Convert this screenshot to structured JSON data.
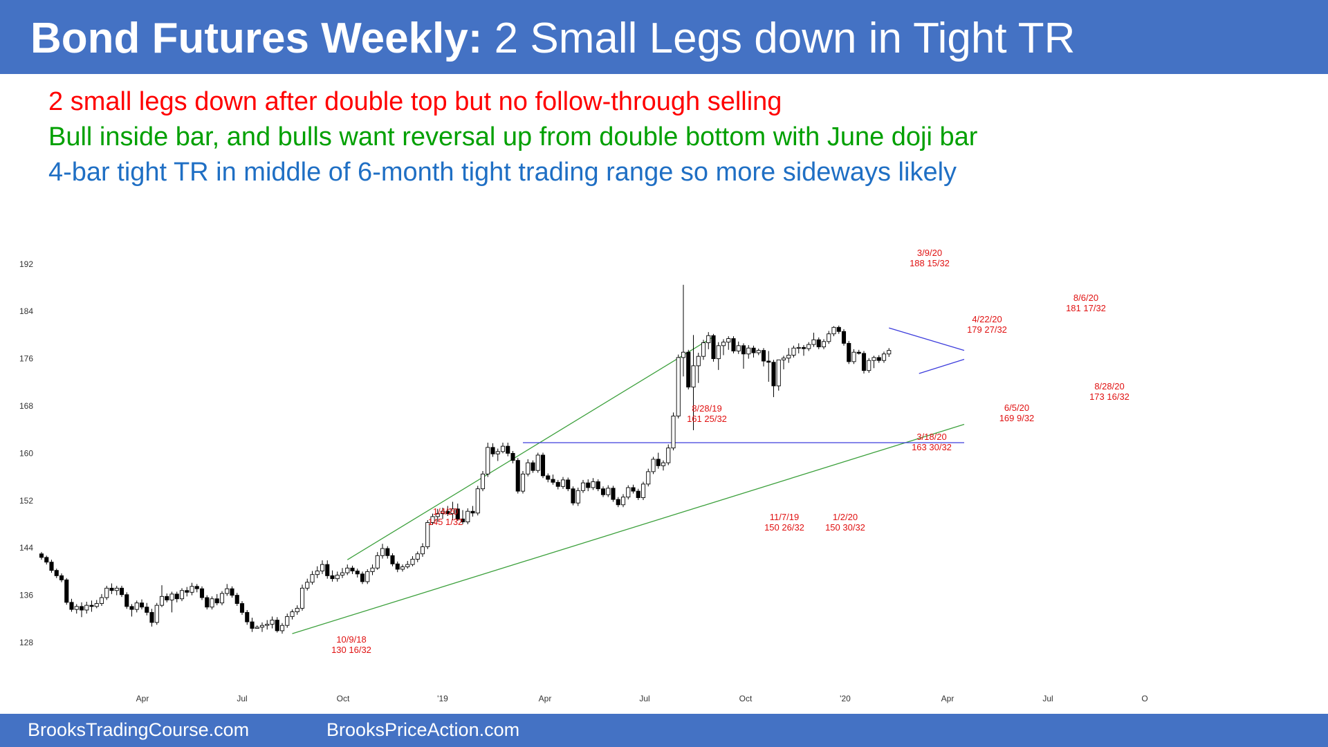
{
  "header": {
    "title_bold": "Bond Futures Weekly:",
    "title_rest": "2 Small Legs down in Tight TR"
  },
  "notes": [
    {
      "text": "2 small legs down after double top but no follow-through selling",
      "color": "#ff0000"
    },
    {
      "text": "Bull inside bar, and bulls want reversal up from double bottom with June doji bar",
      "color": "#00a000"
    },
    {
      "text": "4-bar tight TR in middle of 6-month tight trading range so more sideways likely",
      "color": "#1f6fc4"
    }
  ],
  "footer": {
    "left": "BrooksTradingCourse.com",
    "right": "BrooksPriceAction.com"
  },
  "colors": {
    "brand_blue": "#4472c4",
    "green_line": "#3ca03c",
    "blue_line": "#3c3cdc",
    "annotation": "#e01010"
  },
  "chart_data": {
    "type": "candlestick",
    "ylim": [
      124,
      194
    ],
    "y_ticks": [
      "192",
      "184",
      "176",
      "168",
      "160",
      "152",
      "144",
      "136",
      "128"
    ],
    "x_tick_labels": [
      "Apr",
      "Jul",
      "Oct",
      "'19",
      "Apr",
      "Jul",
      "Oct",
      "'20",
      "Apr",
      "Jul",
      "O"
    ],
    "bars": [
      [
        143.0,
        143.3,
        142.0,
        142.4
      ],
      [
        142.4,
        142.7,
        141.2,
        141.6
      ],
      [
        141.6,
        142.0,
        139.8,
        140.2
      ],
      [
        140.2,
        140.5,
        138.9,
        139.3
      ],
      [
        139.3,
        139.7,
        138.2,
        138.6
      ],
      [
        138.6,
        138.9,
        134.4,
        134.8
      ],
      [
        134.8,
        135.4,
        133.2,
        133.6
      ],
      [
        133.6,
        134.5,
        132.9,
        134.1
      ],
      [
        134.1,
        134.8,
        132.3,
        133.5
      ],
      [
        133.5,
        134.9,
        132.9,
        134.3
      ],
      [
        134.3,
        135.1,
        133.2,
        134.1
      ],
      [
        134.1,
        135.2,
        133.8,
        134.6
      ],
      [
        134.6,
        136.2,
        134.2,
        135.6
      ],
      [
        135.6,
        137.6,
        135.2,
        137.2
      ],
      [
        137.2,
        138.0,
        136.2,
        136.8
      ],
      [
        136.8,
        137.6,
        136.0,
        137.2
      ],
      [
        137.2,
        137.6,
        135.7,
        136.1
      ],
      [
        136.1,
        136.5,
        133.7,
        134.1
      ],
      [
        134.1,
        134.5,
        132.4,
        133.6
      ],
      [
        133.6,
        135.1,
        133.1,
        134.7
      ],
      [
        134.7,
        135.3,
        133.6,
        134.0
      ],
      [
        134.0,
        134.7,
        132.6,
        133.1
      ],
      [
        133.1,
        133.7,
        130.7,
        131.4
      ],
      [
        131.4,
        134.7,
        131.0,
        134.3
      ],
      [
        134.3,
        137.7,
        134.0,
        135.8
      ],
      [
        135.8,
        136.3,
        134.8,
        135.2
      ],
      [
        135.2,
        136.6,
        133.1,
        136.2
      ],
      [
        136.2,
        136.6,
        134.8,
        135.4
      ],
      [
        135.4,
        137.2,
        135.0,
        136.8
      ],
      [
        136.8,
        137.4,
        135.8,
        136.5
      ],
      [
        136.5,
        138.1,
        136.0,
        137.5
      ],
      [
        137.5,
        137.9,
        136.5,
        137.1
      ],
      [
        137.1,
        137.5,
        135.2,
        135.6
      ],
      [
        135.6,
        136.0,
        133.6,
        134.0
      ],
      [
        134.0,
        135.8,
        133.6,
        135.4
      ],
      [
        135.4,
        136.2,
        134.3,
        134.7
      ],
      [
        134.7,
        136.7,
        134.3,
        136.3
      ],
      [
        136.3,
        137.9,
        135.9,
        137.1
      ],
      [
        137.1,
        137.5,
        135.6,
        136.0
      ],
      [
        136.0,
        136.4,
        134.2,
        134.6
      ],
      [
        134.6,
        135.0,
        132.7,
        133.1
      ],
      [
        133.1,
        133.5,
        131.0,
        131.5
      ],
      [
        131.5,
        132.2,
        129.8,
        130.4
      ],
      [
        130.4,
        130.9,
        130.5,
        130.6
      ],
      [
        130.6,
        131.4,
        129.8,
        130.9
      ],
      [
        130.9,
        131.8,
        130.2,
        131.1
      ],
      [
        131.1,
        132.4,
        130.4,
        131.8
      ],
      [
        131.8,
        132.3,
        129.7,
        130.0
      ],
      [
        130.0,
        131.3,
        129.5,
        130.9
      ],
      [
        130.9,
        132.9,
        130.5,
        132.4
      ],
      [
        132.4,
        133.6,
        131.9,
        133.2
      ],
      [
        133.2,
        134.3,
        132.7,
        133.8
      ],
      [
        133.8,
        137.8,
        133.4,
        137.2
      ],
      [
        137.2,
        138.8,
        136.8,
        138.2
      ],
      [
        138.2,
        140.1,
        137.8,
        139.5
      ],
      [
        139.5,
        140.9,
        138.9,
        140.1
      ],
      [
        140.1,
        141.9,
        139.6,
        141.2
      ],
      [
        141.2,
        141.9,
        138.8,
        139.3
      ],
      [
        139.3,
        140.2,
        138.3,
        138.8
      ],
      [
        138.8,
        140.0,
        138.3,
        139.4
      ],
      [
        139.4,
        140.6,
        138.9,
        139.8
      ],
      [
        139.8,
        141.2,
        139.4,
        140.6
      ],
      [
        140.6,
        141.0,
        139.6,
        140.1
      ],
      [
        140.1,
        140.5,
        139.0,
        139.6
      ],
      [
        139.6,
        140.0,
        137.9,
        138.3
      ],
      [
        138.3,
        140.4,
        137.9,
        140.0
      ],
      [
        140.0,
        141.2,
        139.4,
        140.6
      ],
      [
        140.6,
        143.3,
        140.3,
        142.7
      ],
      [
        142.7,
        144.7,
        142.2,
        143.9
      ],
      [
        143.9,
        144.3,
        142.2,
        142.7
      ],
      [
        142.7,
        143.1,
        140.9,
        141.3
      ],
      [
        141.3,
        141.7,
        139.9,
        140.4
      ],
      [
        140.4,
        141.2,
        140.0,
        140.8
      ],
      [
        140.8,
        141.8,
        140.5,
        141.2
      ],
      [
        141.2,
        142.6,
        140.9,
        142.1
      ],
      [
        142.1,
        143.4,
        141.6,
        143.0
      ],
      [
        143.0,
        144.8,
        142.5,
        144.2
      ],
      [
        144.2,
        148.7,
        143.8,
        148.3
      ],
      [
        148.3,
        149.8,
        147.9,
        149.3
      ],
      [
        149.3,
        150.6,
        148.4,
        149.8
      ],
      [
        149.8,
        150.8,
        148.9,
        150.2
      ],
      [
        150.2,
        151.1,
        149.4,
        149.8
      ],
      [
        149.8,
        151.8,
        148.7,
        150.6
      ],
      [
        150.6,
        151.5,
        148.6,
        148.9
      ],
      [
        148.9,
        150.4,
        148.0,
        148.4
      ],
      [
        148.4,
        150.7,
        148.0,
        150.2
      ],
      [
        150.2,
        151.1,
        149.3,
        149.9
      ],
      [
        149.9,
        154.5,
        149.5,
        154.0
      ],
      [
        154.0,
        157.0,
        153.6,
        156.5
      ],
      [
        156.5,
        161.8,
        156.0,
        161.0
      ],
      [
        161.0,
        161.7,
        159.4,
        159.9
      ],
      [
        159.9,
        160.8,
        158.7,
        160.3
      ],
      [
        160.3,
        161.8,
        160.0,
        161.2
      ],
      [
        161.2,
        161.8,
        159.5,
        160.0
      ],
      [
        160.0,
        160.4,
        158.3,
        158.8
      ],
      [
        158.8,
        159.2,
        153.2,
        153.6
      ],
      [
        153.6,
        157.0,
        153.2,
        156.5
      ],
      [
        156.5,
        159.0,
        156.1,
        158.4
      ],
      [
        158.4,
        158.8,
        156.7,
        157.1
      ],
      [
        157.1,
        160.1,
        156.7,
        159.7
      ],
      [
        159.7,
        160.1,
        155.8,
        156.2
      ],
      [
        156.2,
        156.6,
        155.1,
        155.6
      ],
      [
        155.6,
        156.4,
        154.7,
        155.1
      ],
      [
        155.1,
        155.5,
        153.9,
        154.4
      ],
      [
        154.4,
        156.0,
        154.0,
        155.5
      ],
      [
        155.5,
        155.9,
        153.6,
        154.0
      ],
      [
        154.0,
        154.4,
        151.2,
        151.6
      ],
      [
        151.6,
        154.2,
        151.1,
        153.7
      ],
      [
        153.7,
        155.5,
        153.3,
        155.0
      ],
      [
        155.0,
        155.6,
        153.6,
        154.2
      ],
      [
        154.2,
        155.8,
        153.8,
        155.2
      ],
      [
        155.2,
        155.6,
        153.6,
        154.0
      ],
      [
        154.0,
        154.4,
        152.6,
        153.0
      ],
      [
        153.0,
        154.6,
        152.6,
        154.1
      ],
      [
        154.1,
        154.5,
        151.8,
        152.2
      ],
      [
        152.2,
        152.6,
        150.9,
        151.3
      ],
      [
        151.3,
        153.1,
        150.9,
        152.6
      ],
      [
        152.6,
        154.6,
        152.2,
        154.2
      ],
      [
        154.2,
        154.7,
        153.2,
        153.6
      ],
      [
        153.6,
        154.0,
        152.1,
        152.5
      ],
      [
        152.5,
        155.2,
        152.1,
        154.8
      ],
      [
        154.8,
        157.4,
        154.4,
        156.9
      ],
      [
        156.9,
        159.4,
        156.5,
        159.0
      ],
      [
        159.0,
        160.1,
        157.4,
        157.9
      ],
      [
        157.9,
        158.8,
        157.1,
        158.4
      ],
      [
        158.4,
        161.5,
        158.0,
        160.9
      ],
      [
        160.9,
        166.9,
        160.5,
        166.3
      ],
      [
        166.3,
        176.7,
        165.9,
        176.2
      ],
      [
        176.2,
        188.5,
        173.0,
        177.1
      ],
      [
        177.1,
        177.5,
        170.8,
        171.2
      ],
      [
        171.2,
        180.0,
        163.9,
        174.8
      ],
      [
        174.8,
        177.0,
        171.9,
        176.4
      ],
      [
        176.4,
        179.2,
        175.8,
        178.7
      ],
      [
        178.7,
        180.5,
        177.6,
        179.9
      ],
      [
        179.9,
        180.2,
        175.5,
        176.0
      ],
      [
        176.0,
        178.8,
        174.1,
        178.2
      ],
      [
        178.2,
        179.3,
        176.6,
        178.8
      ],
      [
        178.8,
        179.8,
        177.5,
        179.4
      ],
      [
        179.4,
        179.8,
        176.9,
        177.3
      ],
      [
        177.3,
        178.9,
        176.8,
        178.2
      ],
      [
        178.2,
        178.6,
        174.3,
        176.8
      ],
      [
        176.8,
        178.3,
        176.0,
        177.8
      ],
      [
        177.8,
        178.2,
        176.2,
        177.0
      ],
      [
        177.0,
        177.7,
        176.6,
        177.4
      ],
      [
        177.4,
        177.8,
        174.7,
        175.6
      ],
      [
        175.6,
        177.3,
        172.1,
        175.4
      ],
      [
        175.4,
        175.8,
        169.5,
        171.4
      ],
      [
        171.4,
        175.4,
        170.6,
        175.8
      ],
      [
        175.8,
        176.5,
        174.2,
        176.1
      ],
      [
        176.1,
        177.8,
        175.3,
        176.6
      ],
      [
        176.6,
        178.2,
        176.2,
        177.8
      ],
      [
        177.8,
        178.6,
        176.9,
        177.9
      ],
      [
        177.9,
        178.3,
        176.5,
        177.7
      ],
      [
        177.7,
        178.8,
        177.3,
        178.4
      ],
      [
        178.4,
        180.4,
        178.0,
        179.2
      ],
      [
        179.2,
        179.6,
        177.6,
        178.0
      ],
      [
        178.0,
        179.3,
        177.6,
        178.9
      ],
      [
        178.9,
        180.7,
        178.5,
        180.2
      ],
      [
        180.2,
        181.5,
        179.8,
        181.3
      ],
      [
        181.3,
        181.6,
        180.2,
        180.6
      ],
      [
        180.6,
        181.0,
        178.2,
        178.6
      ],
      [
        178.6,
        179.0,
        175.1,
        175.5
      ],
      [
        175.5,
        177.6,
        175.1,
        177.1
      ],
      [
        177.1,
        177.5,
        176.7,
        176.9
      ],
      [
        176.9,
        177.3,
        173.5,
        174.0
      ],
      [
        174.0,
        176.1,
        173.6,
        175.7
      ],
      [
        175.7,
        176.5,
        174.4,
        176.2
      ],
      [
        176.2,
        176.6,
        175.3,
        175.7
      ],
      [
        175.7,
        177.2,
        175.3,
        176.8
      ],
      [
        176.8,
        177.8,
        176.3,
        177.4
      ]
    ],
    "annotations": [
      {
        "date": "3/9/20",
        "price": "188 15/32"
      },
      {
        "date": "4/22/20",
        "price": "179 27/32"
      },
      {
        "date": "8/6/20",
        "price": "181 17/32"
      },
      {
        "date": "8/28/20",
        "price": "173 16/32"
      },
      {
        "date": "6/5/20",
        "price": "169 9/32"
      },
      {
        "date": "8/28/19",
        "price": "161 25/32"
      },
      {
        "date": "3/18/20",
        "price": "163 30/32"
      },
      {
        "date": "1/4/20",
        "price": "145 1/32"
      },
      {
        "date": "11/7/19",
        "price": "150 26/32"
      },
      {
        "date": "1/2/20",
        "price": "150 30/32"
      },
      {
        "date": "10/9/18",
        "price": "130 16/32"
      }
    ],
    "trendlines": [
      {
        "name": "upper channel",
        "color": "#3ca03c",
        "from": [
          61,
          142.0
        ],
        "to": [
          134,
          179.7
        ]
      },
      {
        "name": "lower channel",
        "color": "#3ca03c",
        "from": [
          50,
          129.5
        ],
        "to": [
          184,
          164.9
        ]
      },
      {
        "name": "breakout level",
        "color": "#3c3cdc",
        "from": [
          96,
          161.8
        ],
        "to": [
          184,
          161.8
        ]
      },
      {
        "name": "triangle top",
        "color": "#3c3cdc",
        "from": [
          169,
          181.2
        ],
        "to": [
          184,
          177.4
        ]
      },
      {
        "name": "triangle bottom",
        "color": "#3c3cdc",
        "from": [
          175,
          173.5
        ],
        "to": [
          184,
          175.9
        ]
      }
    ]
  }
}
